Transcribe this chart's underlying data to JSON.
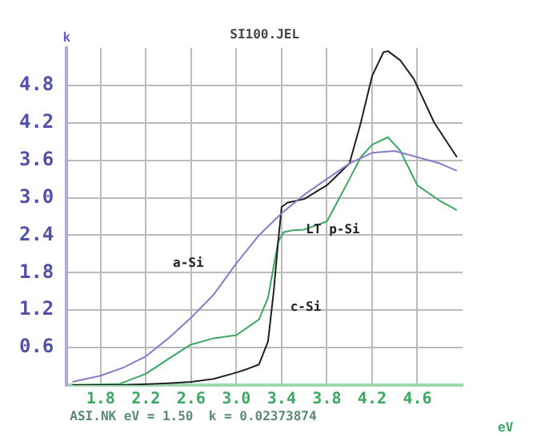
{
  "chart_data": {
    "type": "line",
    "title": "SI100.JEL",
    "xlabel": "eV",
    "ylabel": "k",
    "xlim": [
      1.5,
      5.0
    ],
    "xticks": [
      1.8,
      2.2,
      2.6,
      {
        "value": 3,
        "label": "3.0"
      },
      3.4,
      3.8,
      4.2,
      4.6
    ],
    "ylim": [
      0,
      5.4
    ],
    "yticks": [
      0.6,
      1.2,
      1.8,
      2.4,
      {
        "value": 3,
        "label": "3.0"
      },
      3.6,
      4.2,
      4.8
    ],
    "grid": true,
    "legend": false,
    "marker": "none",
    "line_style": "solid",
    "series": [
      {
        "name": "a-Si",
        "color": "#8a7acc",
        "x": [
          1.55,
          1.8,
          2.0,
          2.2,
          2.4,
          2.6,
          2.8,
          3.0,
          3.2,
          3.4,
          3.6,
          3.8,
          4.0,
          4.2,
          4.4,
          4.6,
          4.8,
          4.95
        ],
        "values": [
          0.05,
          0.15,
          0.28,
          0.46,
          0.75,
          1.08,
          1.45,
          1.95,
          2.4,
          2.75,
          3.05,
          3.3,
          3.55,
          3.72,
          3.75,
          3.65,
          3.55,
          3.43
        ]
      },
      {
        "name": "c-Si",
        "color": "#202020",
        "x": [
          1.55,
          2.0,
          2.4,
          2.6,
          2.8,
          3.0,
          3.1,
          3.2,
          3.28,
          3.33,
          3.37,
          3.4,
          3.45,
          3.6,
          3.8,
          4.0,
          4.1,
          4.2,
          4.3,
          4.34,
          4.45,
          4.57,
          4.75,
          4.95
        ],
        "values": [
          0.0,
          0.0,
          0.03,
          0.05,
          0.1,
          0.2,
          0.26,
          0.33,
          0.7,
          1.5,
          2.3,
          2.85,
          2.92,
          2.98,
          3.2,
          3.55,
          4.2,
          4.95,
          5.33,
          5.35,
          5.2,
          4.9,
          4.2,
          3.65
        ]
      },
      {
        "name": "LT p-Si",
        "color": "#3aa860",
        "x": [
          1.6,
          1.97,
          2.2,
          2.4,
          2.6,
          2.8,
          3.0,
          3.2,
          3.28,
          3.33,
          3.37,
          3.42,
          3.5,
          3.6,
          3.8,
          4.0,
          4.1,
          4.2,
          4.34,
          4.45,
          4.6,
          4.8,
          4.95
        ],
        "values": [
          0.0,
          0.02,
          0.18,
          0.42,
          0.65,
          0.75,
          0.8,
          1.05,
          1.4,
          1.9,
          2.3,
          2.45,
          2.48,
          2.49,
          2.62,
          3.3,
          3.65,
          3.85,
          3.97,
          3.75,
          3.2,
          2.95,
          2.8
        ]
      }
    ],
    "annotations": [
      "ASI.NK eV = 1.50  k = 0.02373874"
    ]
  }
}
